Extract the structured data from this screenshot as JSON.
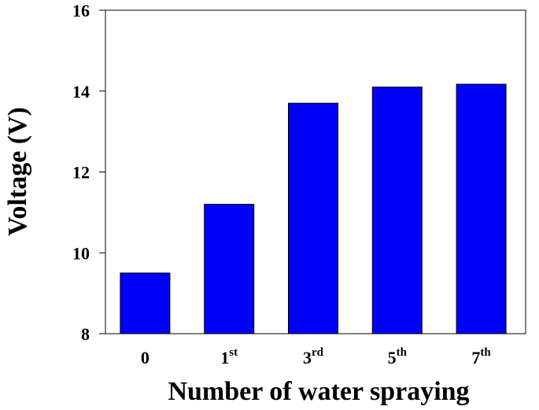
{
  "chart_data": {
    "type": "bar",
    "xlabel": "Number of water spraying",
    "ylabel": "Voltage (V)",
    "categories": [
      "0",
      "1st",
      "3rd",
      "5th",
      "7th"
    ],
    "values": [
      9.5,
      11.2,
      13.7,
      14.1,
      14.17
    ],
    "color": "#0000ff",
    "ylim": [
      8,
      16
    ],
    "yticks": [
      8,
      10,
      12,
      14,
      16
    ]
  }
}
